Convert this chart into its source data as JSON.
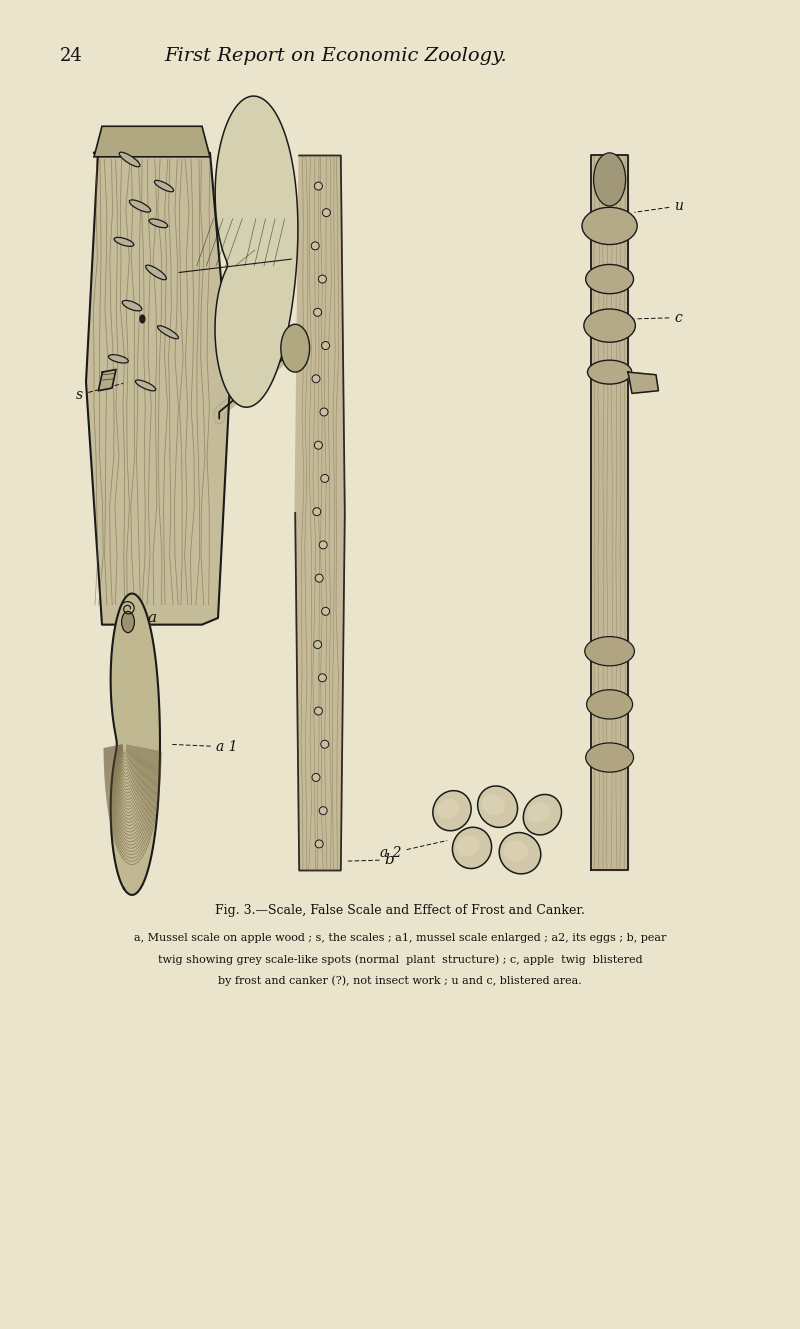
{
  "background_color": "#EAE4CC",
  "page_number": "24",
  "header_text": "First Report on Economic Zoology.",
  "fig_title": "Fig. 3.—Scale, False Scale and Effect of Frost and Canker.",
  "caption_line1": "a, Mussel scale on apple wood ; s, the scales ; a1, mussel scale enlarged ; a2, its eggs ; b, pear",
  "caption_line2": "twig showing grey scale-like spots (normal  plant  structure) ; c, apple  twig  blistered",
  "caption_line3": "by frost and canker (?), not insect work ; u and c, blistered area.",
  "text_color": "#111111",
  "dark_color": "#1a1a1a",
  "wood_fill": "#c8bfa0",
  "wood_dark": "#7a6a4a",
  "scale_fill": "#b0a888",
  "bg_fill": "#EAE4CC"
}
